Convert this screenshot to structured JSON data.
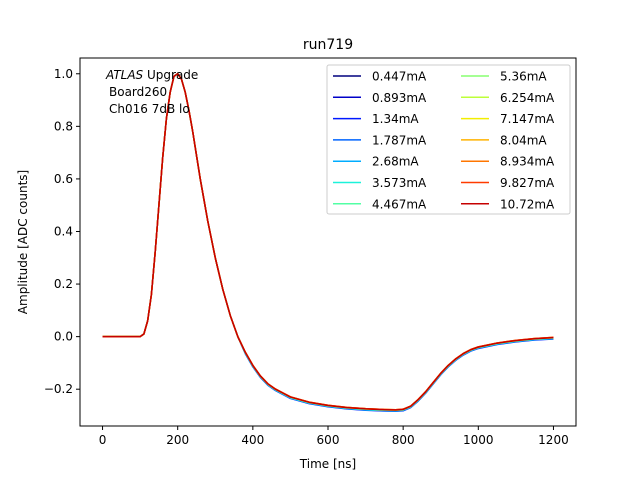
{
  "chart_data": {
    "type": "line",
    "title": "run719",
    "xlabel": "Time [ns]",
    "ylabel": "Amplitude [ADC counts]",
    "xlim": [
      -60,
      1260
    ],
    "ylim": [
      -0.34,
      1.06
    ],
    "xticks": [
      0,
      200,
      400,
      600,
      800,
      1000,
      1200
    ],
    "yticks": [
      -0.2,
      0.0,
      0.2,
      0.4,
      0.6,
      0.8,
      1.0
    ],
    "xtick_labels": [
      "0",
      "200",
      "400",
      "600",
      "800",
      "1000",
      "1200"
    ],
    "ytick_labels": [
      "−0.2",
      "0.0",
      "0.2",
      "0.4",
      "0.6",
      "0.8",
      "1.0"
    ],
    "grid": false,
    "legend_placement": "top-right",
    "legend_columns": 2,
    "annotation": {
      "line1_italic": "ATLAS",
      "line1_rest": " Upgrade",
      "line2": "Board260",
      "line3": "Ch016 7dB lo"
    },
    "x": [
      0,
      50,
      100,
      110,
      120,
      130,
      140,
      150,
      160,
      170,
      180,
      190,
      200,
      210,
      220,
      230,
      240,
      250,
      260,
      270,
      280,
      290,
      300,
      320,
      340,
      360,
      380,
      400,
      420,
      440,
      460,
      480,
      500,
      550,
      600,
      650,
      700,
      750,
      780,
      800,
      820,
      840,
      860,
      880,
      900,
      920,
      940,
      960,
      980,
      1000,
      1050,
      1100,
      1150,
      1200
    ],
    "series": [
      {
        "name": "0.447mA",
        "color": "#00007f",
        "y_offset": 0.0,
        "y_scale": 1.0
      },
      {
        "name": "0.893mA",
        "color": "#0000c8",
        "y_offset": -0.003,
        "y_scale": 1.0
      },
      {
        "name": "1.34mA",
        "color": "#0019ff",
        "y_offset": -0.005,
        "y_scale": 1.0
      },
      {
        "name": "1.787mA",
        "color": "#0064ff",
        "y_offset": -0.004,
        "y_scale": 1.0
      },
      {
        "name": "2.68mA",
        "color": "#00acff",
        "y_offset": -0.003,
        "y_scale": 1.0
      },
      {
        "name": "3.573mA",
        "color": "#1cf2da",
        "y_offset": -0.002,
        "y_scale": 1.0
      },
      {
        "name": "4.467mA",
        "color": "#52ffa4",
        "y_offset": -0.001,
        "y_scale": 1.0
      },
      {
        "name": "5.36mA",
        "color": "#87ff70",
        "y_offset": 0.0,
        "y_scale": 1.0
      },
      {
        "name": "6.254mA",
        "color": "#bdff39",
        "y_offset": 0.0,
        "y_scale": 1.0
      },
      {
        "name": "7.147mA",
        "color": "#f2ee00",
        "y_offset": 0.0,
        "y_scale": 1.0
      },
      {
        "name": "8.04mA",
        "color": "#ffb200",
        "y_offset": 0.001,
        "y_scale": 1.0
      },
      {
        "name": "8.934mA",
        "color": "#ff7600",
        "y_offset": 0.001,
        "y_scale": 1.0
      },
      {
        "name": "9.827mA",
        "color": "#ff3b00",
        "y_offset": 0.001,
        "y_scale": 1.0
      },
      {
        "name": "10.72mA",
        "color": "#c60000",
        "y_offset": 0.0,
        "y_scale": 1.0
      }
    ],
    "y": [
      0.0,
      0.0,
      0.0,
      0.01,
      0.06,
      0.16,
      0.32,
      0.5,
      0.68,
      0.83,
      0.93,
      0.99,
      1.0,
      0.98,
      0.93,
      0.86,
      0.78,
      0.69,
      0.6,
      0.52,
      0.44,
      0.37,
      0.3,
      0.18,
      0.08,
      0.0,
      -0.06,
      -0.11,
      -0.15,
      -0.18,
      -0.2,
      -0.215,
      -0.23,
      -0.25,
      -0.262,
      -0.27,
      -0.275,
      -0.278,
      -0.279,
      -0.277,
      -0.265,
      -0.24,
      -0.21,
      -0.175,
      -0.14,
      -0.11,
      -0.085,
      -0.065,
      -0.05,
      -0.04,
      -0.025,
      -0.015,
      -0.008,
      -0.004
    ]
  }
}
